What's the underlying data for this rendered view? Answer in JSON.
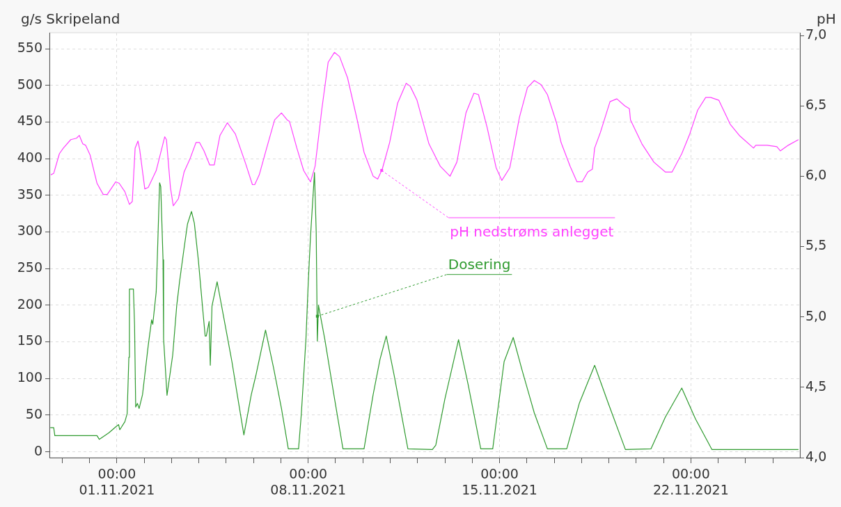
{
  "chart_data": {
    "type": "line",
    "ylabel": "g/s Skripeland",
    "y2label": "pH",
    "xlim": [
      "2021-10-29T12:45",
      "2021-11-25T23:45"
    ],
    "xticks": [
      {
        "value": "2021-10-30T00:00",
        "label": null
      },
      {
        "value": "2021-10-31T00:00",
        "label": null
      },
      {
        "value": "2021-11-01T00:00",
        "label": "00:00\n01.11.2021"
      },
      {
        "value": "2021-11-02T00:00",
        "label": null
      },
      {
        "value": "2021-11-03T00:00",
        "label": null
      },
      {
        "value": "2021-11-04T00:00",
        "label": null
      },
      {
        "value": "2021-11-05T00:00",
        "label": null
      },
      {
        "value": "2021-11-06T00:00",
        "label": null
      },
      {
        "value": "2021-11-07T00:00",
        "label": null
      },
      {
        "value": "2021-11-08T00:00",
        "label": "00:00\n08.11.2021"
      },
      {
        "value": "2021-11-09T00:00",
        "label": null
      },
      {
        "value": "2021-11-10T00:00",
        "label": null
      },
      {
        "value": "2021-11-11T00:00",
        "label": null
      },
      {
        "value": "2021-11-12T00:00",
        "label": null
      },
      {
        "value": "2021-11-13T00:00",
        "label": null
      },
      {
        "value": "2021-11-14T00:00",
        "label": null
      },
      {
        "value": "2021-11-15T00:00",
        "label": "00:00\n15.11.2021"
      },
      {
        "value": "2021-11-16T00:00",
        "label": null
      },
      {
        "value": "2021-11-17T00:00",
        "label": null
      },
      {
        "value": "2021-11-18T00:00",
        "label": null
      },
      {
        "value": "2021-11-19T00:00",
        "label": null
      },
      {
        "value": "2021-11-20T00:00",
        "label": null
      },
      {
        "value": "2021-11-21T00:00",
        "label": null
      },
      {
        "value": "2021-11-22T00:00",
        "label": "00:00\n22.11.2021"
      },
      {
        "value": "2021-11-23T00:00",
        "label": null
      },
      {
        "value": "2021-11-24T00:00",
        "label": null
      },
      {
        "value": "2021-11-25T00:00",
        "label": null
      }
    ],
    "ylim": [
      -8,
      572
    ],
    "yticks": [
      0,
      50,
      100,
      150,
      200,
      250,
      300,
      350,
      400,
      450,
      500,
      550
    ],
    "y2lim": [
      4,
      7.02
    ],
    "y2ticks": [
      {
        "value": 4,
        "label": "4,0"
      },
      {
        "value": 4.5,
        "label": "4,5"
      },
      {
        "value": 5,
        "label": "5,0"
      },
      {
        "value": 5.5,
        "label": "5,5"
      },
      {
        "value": 6,
        "label": "6,0"
      },
      {
        "value": 6.5,
        "label": "6,5"
      },
      {
        "value": 7,
        "label": "7,0"
      }
    ],
    "grid": true,
    "marker": "none",
    "line_style": "solid",
    "series": [
      {
        "color": "#ff40ff",
        "axis": "y2",
        "x": [
          "2021-10-29T14:00",
          "2021-10-29T16:30",
          "2021-10-29T21:30",
          "2021-10-30T01:00",
          "2021-10-30T07:30",
          "2021-10-30T12:30",
          "2021-10-30T15:00",
          "2021-10-30T18:00",
          "2021-10-30T20:30",
          "2021-10-31T00:30",
          "2021-10-31T06:30",
          "2021-10-31T12:00",
          "2021-10-31T15:30",
          "2021-10-31T23:00",
          "2021-11-01T02:00",
          "2021-11-01T07:00",
          "2021-11-01T11:00",
          "2021-11-01T13:30",
          "2021-11-01T16:00",
          "2021-11-01T18:30",
          "2021-11-01T20:00",
          "2021-11-02T00:30",
          "2021-11-02T03:30",
          "2021-11-02T10:30",
          "2021-11-02T18:00",
          "2021-11-02T19:30",
          "2021-11-02T23:00",
          "2021-11-03T01:30",
          "2021-11-03T06:00",
          "2021-11-03T11:00",
          "2021-11-03T16:00",
          "2021-11-03T21:30",
          "2021-11-04T00:30",
          "2021-11-04T04:30",
          "2021-11-04T09:30",
          "2021-11-04T13:30",
          "2021-11-04T18:30",
          "2021-11-05T01:00",
          "2021-11-05T08:00",
          "2021-11-05T17:00",
          "2021-11-05T23:00",
          "2021-11-06T01:00",
          "2021-11-06T05:00",
          "2021-11-06T11:30",
          "2021-11-06T18:30",
          "2021-11-07T00:30",
          "2021-11-07T05:30",
          "2021-11-07T07:30",
          "2021-11-07T14:00",
          "2021-11-07T20:00",
          "2021-11-08T02:00",
          "2021-11-08T06:00",
          "2021-11-08T12:00",
          "2021-11-08T17:30",
          "2021-11-08T23:00",
          "2021-11-09T03:30",
          "2021-11-09T10:30",
          "2021-11-09T19:00",
          "2021-11-10T01:00",
          "2021-11-10T09:00",
          "2021-11-10T13:00",
          "2021-11-10T17:00",
          "2021-11-10T23:30",
          "2021-11-11T06:30",
          "2021-11-11T14:00",
          "2021-11-11T17:30",
          "2021-11-11T23:30",
          "2021-11-12T10:00",
          "2021-11-12T20:00",
          "2021-11-13T04:30",
          "2021-11-13T10:30",
          "2021-11-13T18:30",
          "2021-11-14T01:30",
          "2021-11-14T05:30",
          "2021-11-14T13:00",
          "2021-11-14T21:00",
          "2021-11-15T02:00",
          "2021-11-15T09:00",
          "2021-11-15T17:30",
          "2021-11-16T00:30",
          "2021-11-16T06:30",
          "2021-11-16T12:30",
          "2021-11-16T18:00",
          "2021-11-17T02:00",
          "2021-11-17T06:00",
          "2021-11-17T14:00",
          "2021-11-17T20:00",
          "2021-11-18T00:30",
          "2021-11-18T05:30",
          "2021-11-18T09:30",
          "2021-11-18T11:30",
          "2021-11-18T16:30",
          "2021-11-19T01:00",
          "2021-11-19T07:00",
          "2021-11-19T14:00",
          "2021-11-19T18:00",
          "2021-11-19T19:00",
          "2021-11-20T05:00",
          "2021-11-20T15:30",
          "2021-11-21T01:30",
          "2021-11-21T07:30",
          "2021-11-21T16:00",
          "2021-11-21T23:00",
          "2021-11-22T06:00",
          "2021-11-22T13:00",
          "2021-11-22T17:30",
          "2021-11-23T00:30",
          "2021-11-23T10:30",
          "2021-11-23T18:30",
          "2021-11-24T07:00",
          "2021-11-24T09:00",
          "2021-11-24T19:00",
          "2021-11-25T03:30",
          "2021-11-25T06:30",
          "2021-11-25T13:30",
          "2021-11-25T22:30"
        ],
        "values": [
          6.01,
          6.02,
          6.16,
          6.2,
          6.26,
          6.27,
          6.29,
          6.23,
          6.22,
          6.15,
          5.95,
          5.87,
          5.87,
          5.96,
          5.95,
          5.89,
          5.8,
          5.82,
          6.2,
          6.25,
          6.19,
          5.91,
          5.92,
          6.04,
          6.28,
          6.26,
          5.92,
          5.79,
          5.84,
          6.03,
          6.12,
          6.24,
          6.24,
          6.18,
          6.08,
          6.08,
          6.29,
          6.38,
          6.3,
          6.09,
          5.94,
          5.94,
          6.01,
          6.2,
          6.4,
          6.45,
          6.4,
          6.39,
          6.2,
          6.04,
          5.96,
          6.07,
          6.48,
          6.81,
          6.88,
          6.85,
          6.7,
          6.4,
          6.17,
          6,
          5.98,
          6.05,
          6.24,
          6.52,
          6.66,
          6.64,
          6.54,
          6.23,
          6.07,
          6,
          6.1,
          6.45,
          6.59,
          6.58,
          6.35,
          6.06,
          5.97,
          6.06,
          6.42,
          6.63,
          6.68,
          6.65,
          6.58,
          6.38,
          6.24,
          6.07,
          5.96,
          5.96,
          6.03,
          6.05,
          6.2,
          6.31,
          6.53,
          6.55,
          6.5,
          6.48,
          6.4,
          6.23,
          6.1,
          6.03,
          6.03,
          6.16,
          6.3,
          6.47,
          6.56,
          6.56,
          6.54,
          6.37,
          6.29,
          6.2,
          6.22,
          6.22,
          6.21,
          6.18,
          6.22,
          6.26
        ]
      },
      {
        "color": "#2e9a2e",
        "x": [
          "2021-10-29T13:30",
          "2021-10-29T16:30",
          "2021-10-29T17:30",
          "2021-10-31T06:30",
          "2021-10-31T08:30",
          "2021-10-31T17:00",
          "2021-10-31T23:00",
          "2021-11-01T01:30",
          "2021-11-01T02:30",
          "2021-11-01T07:00",
          "2021-11-01T09:00",
          "2021-11-01T10:30",
          "2021-11-01T11:00",
          "2021-11-01T14:30",
          "2021-11-01T15:30",
          "2021-11-01T16:30",
          "2021-11-01T18:00",
          "2021-11-01T19:30",
          "2021-11-01T22:30",
          "2021-11-02T03:30",
          "2021-11-02T06:30",
          "2021-11-02T07:30",
          "2021-11-02T10:30",
          "2021-11-02T11:30",
          "2021-11-02T13:30",
          "2021-11-02T14:30",
          "2021-11-02T16:30",
          "2021-11-02T17:00",
          "2021-11-02T20:00",
          "2021-11-03T01:00",
          "2021-11-03T04:30",
          "2021-11-03T07:00",
          "2021-11-03T11:00",
          "2021-11-03T14:00",
          "2021-11-03T17:30",
          "2021-11-03T20:00",
          "2021-11-03T23:30",
          "2021-11-04T03:30",
          "2021-11-04T05:30",
          "2021-11-04T06:30",
          "2021-11-04T09:00",
          "2021-11-04T10:00",
          "2021-11-04T11:30",
          "2021-11-04T16:00",
          "2021-11-04T21:30",
          "2021-11-05T05:00",
          "2021-11-05T10:00",
          "2021-11-05T15:30",
          "2021-11-05T22:00",
          "2021-11-06T02:00",
          "2021-11-06T10:30",
          "2021-11-06T17:30",
          "2021-11-07T00:30",
          "2021-11-07T06:30",
          "2021-11-07T15:30",
          "2021-11-07T18:00",
          "2021-11-07T22:00",
          "2021-11-08T00:00",
          "2021-11-08T02:00",
          "2021-11-08T05:30",
          "2021-11-08T07:00",
          "2021-11-08T08:00",
          "2021-11-08T09:00",
          "2021-11-08T14:30",
          "2021-11-08T22:30",
          "2021-11-09T06:30",
          "2021-11-10T01:00",
          "2021-11-10T09:00",
          "2021-11-10T15:00",
          "2021-11-10T20:30",
          "2021-11-11T03:30",
          "2021-11-11T15:30",
          "2021-11-12T13:00",
          "2021-11-12T16:00",
          "2021-11-13T00:00",
          "2021-11-13T12:00",
          "2021-11-13T20:30",
          "2021-11-14T07:30",
          "2021-11-14T18:00",
          "2021-11-15T04:00",
          "2021-11-15T12:00",
          "2021-11-15T19:30",
          "2021-11-16T06:30",
          "2021-11-16T18:00",
          "2021-11-17T11:00",
          "2021-11-17T22:00",
          "2021-11-18T11:30",
          "2021-11-18T23:30",
          "2021-11-19T14:30",
          "2021-11-20T13:00",
          "2021-11-21T01:30",
          "2021-11-21T16:00",
          "2021-11-22T04:00",
          "2021-11-22T18:30",
          "2021-11-25T22:30"
        ],
        "values": [
          33,
          33,
          22,
          22,
          17,
          26,
          34,
          37,
          30,
          41,
          52,
          129,
          222,
          222,
          173,
          61,
          66,
          59,
          78,
          145,
          180,
          174,
          218,
          265,
          367,
          362,
          262,
          154,
          77,
          132,
          199,
          232,
          278,
          311,
          328,
          312,
          262,
          192,
          158,
          158,
          178,
          118,
          199,
          232,
          186,
          123,
          75,
          23,
          78,
          104,
          166,
          115,
          59,
          4,
          4,
          53,
          154,
          230,
          294,
          381,
          300,
          151,
          200,
          154,
          78,
          4,
          4,
          78,
          126,
          158,
          104,
          4,
          3,
          9,
          72,
          153,
          91,
          4,
          4,
          123,
          156,
          113,
          53,
          4,
          4,
          66,
          118,
          66,
          3,
          4,
          47,
          87,
          45,
          3,
          3
        ]
      }
    ],
    "annotations": [
      {
        "text": "pH nedstrøms anlegget",
        "x": "2021-11-10T16:30",
        "y": 384
      },
      {
        "text": "Dosering",
        "x": "2021-11-08T08:00",
        "y": 185
      }
    ]
  }
}
